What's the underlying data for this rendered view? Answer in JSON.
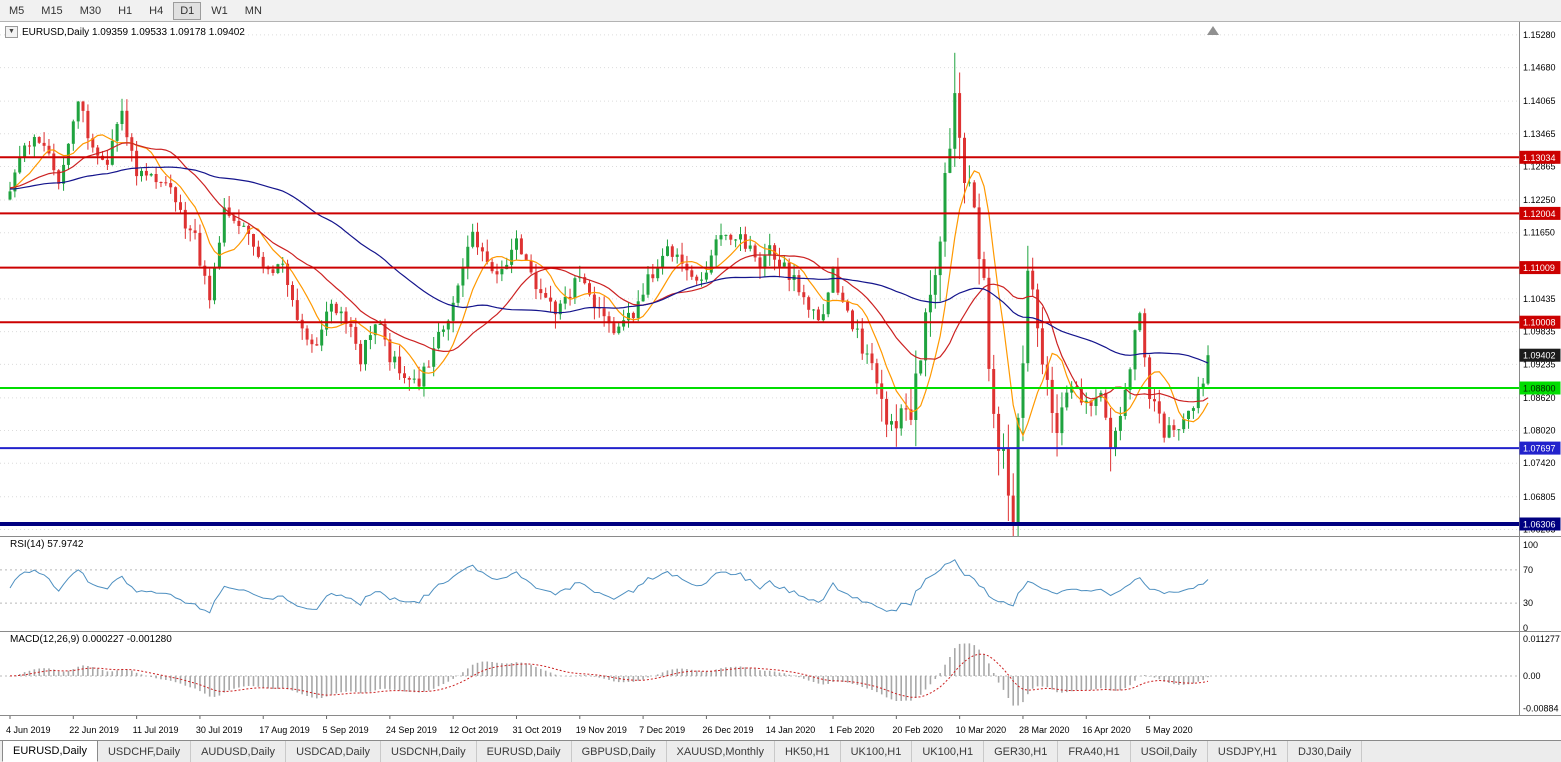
{
  "toolbar": {
    "timeframes": [
      "M5",
      "M15",
      "M30",
      "H1",
      "H4",
      "D1",
      "W1",
      "MN"
    ],
    "active_timeframe": "D1"
  },
  "chart": {
    "title_text": "EURUSD,Daily 1.09359 1.09533 1.09178 1.09402",
    "symbol": "EURUSD,Daily"
  },
  "price_axis": {
    "labels": [
      "1.15280",
      "1.14680",
      "1.14065",
      "1.13465",
      "1.12865",
      "1.12250",
      "1.11650",
      "1.10435",
      "1.09835",
      "1.09235",
      "1.08620",
      "1.08020",
      "1.07420",
      "1.06805",
      "1.06205"
    ]
  },
  "levels": [
    {
      "label": "1.13034",
      "value": 1.13034,
      "color": "#cc0000",
      "line_width": 2,
      "text_color": "#ffffff"
    },
    {
      "label": "1.12004",
      "value": 1.12004,
      "color": "#cc0000",
      "line_width": 2,
      "text_color": "#ffffff"
    },
    {
      "label": "1.11009",
      "value": 1.11009,
      "color": "#cc0000",
      "line_width": 2,
      "text_color": "#ffffff"
    },
    {
      "label": "1.10008",
      "value": 1.10008,
      "color": "#cc0000",
      "line_width": 2,
      "text_color": "#ffffff"
    },
    {
      "label": "1.08800",
      "value": 1.088,
      "color": "#00dd00",
      "line_width": 2,
      "text_color": "#002200"
    },
    {
      "label": "1.07697",
      "value": 1.07697,
      "color": "#2222cc",
      "line_width": 2,
      "text_color": "#ffffff"
    },
    {
      "label": "1.06306",
      "value": 1.06306,
      "color": "#000080",
      "line_width": 4,
      "text_color": "#ffffff"
    }
  ],
  "current_price": {
    "label": "1.09402",
    "value": 1.09402,
    "bg": "#1c1c1c",
    "text_color": "#ffffff"
  },
  "indicators": {
    "rsi": {
      "label": "RSI(14) 57.9742",
      "scale": [
        {
          "label": "100",
          "value": 100
        },
        {
          "label": "70",
          "value": 70
        },
        {
          "label": "30",
          "value": 30
        },
        {
          "label": "0",
          "value": 0
        }
      ],
      "guide_levels": [
        70,
        30
      ],
      "line_color": "#4d8fc0"
    },
    "macd": {
      "label": "MACD(12,26,9) 0.000227 -0.001280",
      "scale": [
        {
          "label": "0.011277",
          "value": 0.011277
        },
        {
          "label": "0.00",
          "value": 0
        },
        {
          "label": "-0.00884",
          "value": -0.00884
        }
      ],
      "histogram_color": "#a8a8a8",
      "signal_color": "#cc2222"
    }
  },
  "date_axis": {
    "labels": [
      "4 Jun 2019",
      "22 Jun 2019",
      "11 Jul 2019",
      "30 Jul 2019",
      "17 Aug 2019",
      "5 Sep 2019",
      "24 Sep 2019",
      "12 Oct 2019",
      "31 Oct 2019",
      "19 Nov 2019",
      "7 Dec 2019",
      "26 Dec 2019",
      "14 Jan 2020",
      "1 Feb 2020",
      "20 Feb 2020",
      "10 Mar 2020",
      "28 Mar 2020",
      "16 Apr 2020",
      "5 May 2020"
    ],
    "candles_per_label": 13
  },
  "tabs": [
    {
      "label": "EURUSD,Daily",
      "active": true
    },
    {
      "label": "USDCHF,Daily"
    },
    {
      "label": "AUDUSD,Daily"
    },
    {
      "label": "USDCAD,Daily"
    },
    {
      "label": "USDCNH,Daily"
    },
    {
      "label": "EURUSD,Daily"
    },
    {
      "label": "GBPUSD,Daily"
    },
    {
      "label": "XAUUSD,Monthly"
    },
    {
      "label": "HK50,H1"
    },
    {
      "label": "UK100,H1"
    },
    {
      "label": "UK100,H1"
    },
    {
      "label": "GER30,H1"
    },
    {
      "label": "FRA40,H1"
    },
    {
      "label": "USOil,Daily"
    },
    {
      "label": "USDJPY,H1"
    },
    {
      "label": "DJ30,Daily"
    }
  ],
  "chart_data": {
    "type": "candlestick",
    "symbol": "EURUSD",
    "timeframe": "Daily",
    "ohlc_last": {
      "open": 1.09359,
      "high": 1.09533,
      "low": 1.09178,
      "close": 1.09402
    },
    "candle_count": 247,
    "y_domain": [
      1.06085,
      1.15516
    ],
    "close_anchors": [
      [
        0,
        1.1245
      ],
      [
        3,
        1.131
      ],
      [
        6,
        1.134
      ],
      [
        10,
        1.1262
      ],
      [
        14,
        1.1398
      ],
      [
        17,
        1.133
      ],
      [
        20,
        1.129
      ],
      [
        23,
        1.1388
      ],
      [
        26,
        1.1275
      ],
      [
        30,
        1.1272
      ],
      [
        34,
        1.1222
      ],
      [
        38,
        1.115
      ],
      [
        41,
        1.1045
      ],
      [
        44,
        1.12
      ],
      [
        48,
        1.1168
      ],
      [
        52,
        1.1095
      ],
      [
        56,
        1.1098
      ],
      [
        60,
        1.0985
      ],
      [
        63,
        1.0965
      ],
      [
        65,
        1.103
      ],
      [
        68,
        1.1022
      ],
      [
        72,
        1.0935
      ],
      [
        75,
        1.1005
      ],
      [
        78,
        1.0942
      ],
      [
        82,
        1.09
      ],
      [
        84,
        1.0885
      ],
      [
        88,
        1.0975
      ],
      [
        91,
        1.104
      ],
      [
        95,
        1.1155
      ],
      [
        99,
        1.1085
      ],
      [
        102,
        1.112
      ],
      [
        104,
        1.1148
      ],
      [
        108,
        1.1072
      ],
      [
        112,
        1.1012
      ],
      [
        115,
        1.1055
      ],
      [
        117,
        1.1078
      ],
      [
        121,
        1.1012
      ],
      [
        125,
        1.0982
      ],
      [
        128,
        1.1022
      ],
      [
        130,
        1.1058
      ],
      [
        134,
        1.1128
      ],
      [
        138,
        1.1118
      ],
      [
        141,
        1.1088
      ],
      [
        143,
        1.1098
      ],
      [
        146,
        1.1172
      ],
      [
        150,
        1.1158
      ],
      [
        154,
        1.1098
      ],
      [
        156,
        1.1128
      ],
      [
        160,
        1.1092
      ],
      [
        164,
        1.1032
      ],
      [
        167,
        1.1008
      ],
      [
        169,
        1.1088
      ],
      [
        173,
        1.1
      ],
      [
        177,
        1.0915
      ],
      [
        180,
        1.0835
      ],
      [
        182,
        1.0792
      ],
      [
        185,
        1.085
      ],
      [
        188,
        1.1005
      ],
      [
        191,
        1.1138
      ],
      [
        194,
        1.1452
      ],
      [
        196,
        1.128
      ],
      [
        198,
        1.1182
      ],
      [
        200,
        1.1108
      ],
      [
        201,
        1.092
      ],
      [
        203,
        1.0795
      ],
      [
        205,
        1.07
      ],
      [
        206,
        1.0655
      ],
      [
        208,
        1.095
      ],
      [
        209,
        1.109
      ],
      [
        212,
        1.0952
      ],
      [
        215,
        1.0802
      ],
      [
        218,
        1.0892
      ],
      [
        221,
        1.0845
      ],
      [
        224,
        1.0872
      ],
      [
        226,
        1.0785
      ],
      [
        228,
        1.0832
      ],
      [
        230,
        1.0905
      ],
      [
        231,
        1.0978
      ],
      [
        232,
        1.1008
      ],
      [
        233,
        1.0948
      ],
      [
        234,
        1.0868
      ],
      [
        237,
        1.0798
      ],
      [
        240,
        1.0815
      ],
      [
        243,
        1.0852
      ],
      [
        245,
        1.0885
      ],
      [
        246,
        1.09402
      ]
    ],
    "wick_spikes": [
      {
        "i": 194,
        "high": 1.1495
      },
      {
        "i": 205,
        "low": 1.0636
      },
      {
        "i": 206,
        "low": 1.065
      },
      {
        "i": 41,
        "low": 1.1026
      },
      {
        "i": 72,
        "low": 1.0926
      },
      {
        "i": 82,
        "low": 1.0879
      },
      {
        "i": 112,
        "low": 1.0989
      },
      {
        "i": 182,
        "low": 1.0778
      },
      {
        "i": 226,
        "low": 1.0727
      }
    ],
    "high_vol_range": [
      179,
      216
    ],
    "moving_averages": [
      {
        "period": 8,
        "color": "#ff9900"
      },
      {
        "period": 21,
        "color": "#cc2222"
      },
      {
        "period": 55,
        "color": "#14148c"
      }
    ],
    "colors": {
      "up": "#1fa33f",
      "down": "#de3232"
    },
    "rsi_period": 14,
    "rsi_last": 57.9742,
    "macd": {
      "fast": 12,
      "slow": 26,
      "signal": 9,
      "last": 0.000227,
      "signal_last": -0.00128
    }
  }
}
